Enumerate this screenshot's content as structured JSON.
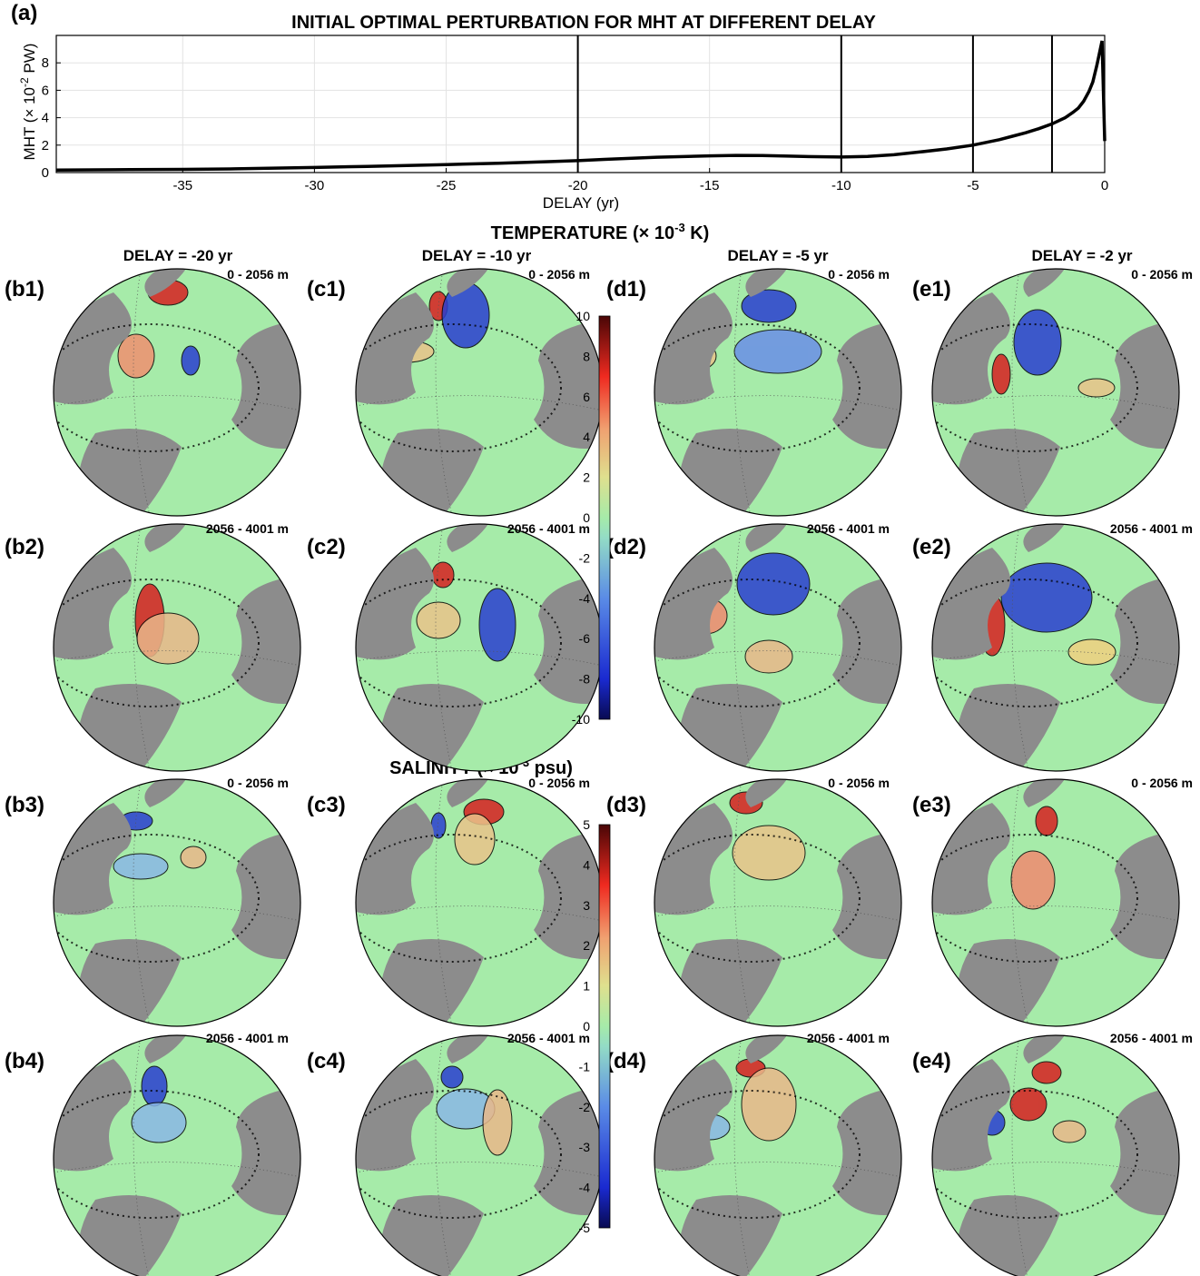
{
  "chart_data": [
    {
      "type": "line",
      "panel_label": "(a)",
      "title": "INITIAL OPTIMAL PERTURBATION FOR MHT AT DIFFERENT DELAY",
      "xlabel": "DELAY (yr)",
      "ylabel": "MHT (× 10⁻² PW)",
      "ylabel_parts": {
        "pre": "MHT (× 10",
        "sup": "-2",
        "post": " PW)"
      },
      "xlim": [
        -39.8,
        0
      ],
      "ylim": [
        0,
        10
      ],
      "grid": true,
      "xticks": [
        -35,
        -30,
        -25,
        -20,
        -15,
        -10,
        -5,
        0
      ],
      "yticks": [
        0,
        2,
        4,
        6,
        8
      ],
      "vertical_markers": [
        -20,
        -10,
        -5,
        -2
      ],
      "series": [
        {
          "x": [
            -39.8,
            -37,
            -35,
            -33,
            -30,
            -28,
            -25,
            -23,
            -21,
            -20,
            -19,
            -17,
            -15,
            -14,
            -13,
            -12,
            -11,
            -10,
            -9,
            -8,
            -7,
            -6,
            -5,
            -4.5,
            -4,
            -3.5,
            -3,
            -2.5,
            -2,
            -1.5,
            -1.2,
            -1.0,
            -0.8,
            -0.6,
            -0.45,
            -0.3,
            -0.2,
            -0.1,
            0
          ],
          "y": [
            0.18,
            0.21,
            0.23,
            0.27,
            0.37,
            0.45,
            0.58,
            0.68,
            0.8,
            0.87,
            0.96,
            1.12,
            1.22,
            1.25,
            1.24,
            1.2,
            1.16,
            1.13,
            1.17,
            1.3,
            1.5,
            1.72,
            2.0,
            2.2,
            2.4,
            2.65,
            2.9,
            3.2,
            3.55,
            4.0,
            4.4,
            4.7,
            5.2,
            5.9,
            6.6,
            7.8,
            8.7,
            9.6,
            2.3
          ]
        }
      ]
    },
    {
      "type": "heatmap",
      "title": "TEMPERATURE (× 10⁻³ K)",
      "title_parts": {
        "pre": "TEMPERATURE (",
        "times": "×",
        "mid": " 10",
        "sup": "-3",
        "post": " K)"
      },
      "colorbar_ticks": [
        "10",
        "8",
        "6",
        "4",
        "2",
        "0",
        "-2",
        "-4",
        "-6",
        "-8",
        "-10"
      ],
      "colorbar_range": [
        -10,
        10
      ],
      "column_headers": [
        "DELAY = -20 yr",
        "DELAY = -10 yr",
        "DELAY = -5 yr",
        "DELAY = -2 yr"
      ],
      "panels": [
        {
          "label": "(b1)",
          "depth": "0 - 2056 m"
        },
        {
          "label": "(c1)",
          "depth": "0 - 2056 m"
        },
        {
          "label": "(d1)",
          "depth": "0 - 2056 m"
        },
        {
          "label": "(e1)",
          "depth": "0 - 2056 m"
        },
        {
          "label": "(b2)",
          "depth": "2056 - 4001 m"
        },
        {
          "label": "(c2)",
          "depth": "2056 - 4001 m"
        },
        {
          "label": "(d2)",
          "depth": "2056 - 4001 m"
        },
        {
          "label": "(e2)",
          "depth": "2056 - 4001 m"
        }
      ]
    },
    {
      "type": "heatmap",
      "title": "SALINITY (× 10⁻³ psu)",
      "title_parts": {
        "pre": "SALINITY (",
        "times": "×",
        "mid": " 10",
        "sup": "-3",
        "post": " psu)"
      },
      "colorbar_ticks": [
        "5",
        "4",
        "3",
        "2",
        "1",
        "0",
        "-1",
        "-2",
        "-3",
        "-4",
        "-5"
      ],
      "colorbar_range": [
        -5,
        5
      ],
      "panels": [
        {
          "label": "(b3)",
          "depth": "0 - 2056 m"
        },
        {
          "label": "(c3)",
          "depth": "0 - 2056 m"
        },
        {
          "label": "(d3)",
          "depth": "0 - 2056 m"
        },
        {
          "label": "(e3)",
          "depth": "0 - 2056 m"
        },
        {
          "label": "(b4)",
          "depth": "2056 - 4001 m"
        },
        {
          "label": "(c4)",
          "depth": "2056 - 4001 m"
        },
        {
          "label": "(d4)",
          "depth": "2056 - 4001 m"
        },
        {
          "label": "(e4)",
          "depth": "2056 - 4001 m"
        }
      ]
    }
  ],
  "colors": {
    "ocean_background": "#a6eba9",
    "land": "#8c8c8c",
    "positive": "#d62020",
    "negative": "#2a3fd0",
    "line": "#000000"
  }
}
